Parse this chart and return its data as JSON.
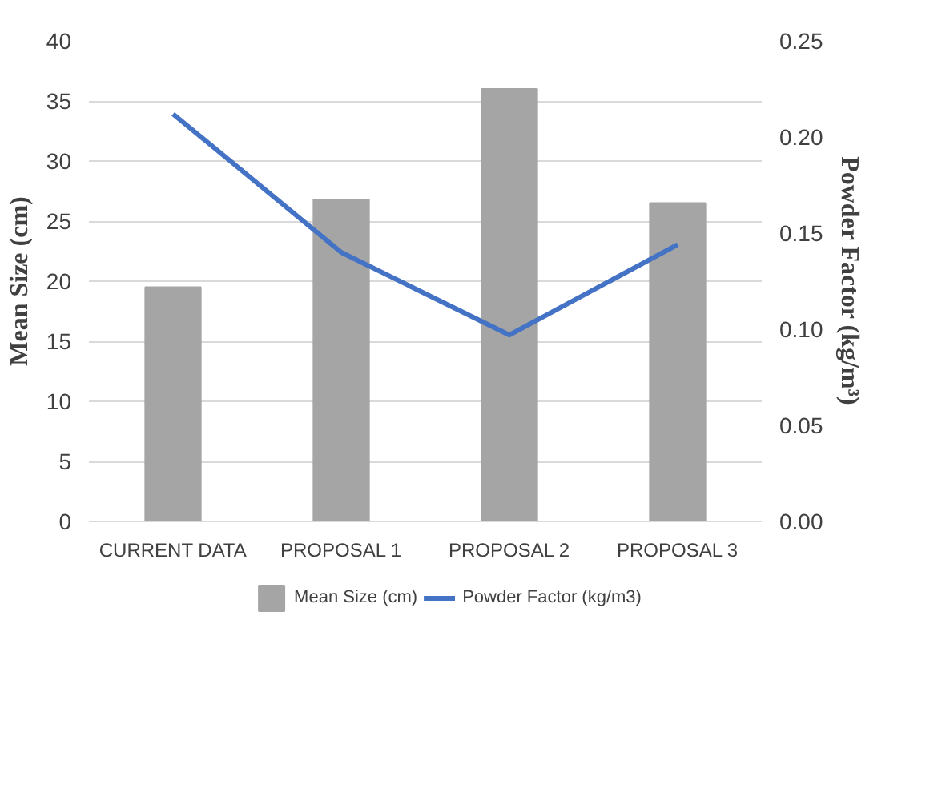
{
  "chart_data": {
    "type": "bar",
    "categories": [
      "CURRENT DATA",
      "PROPOSAL 1",
      "PROPOSAL 2",
      "PROPOSAL 3"
    ],
    "ylabel": "Mean Size (cm)",
    "y2label": "Powder Factor (kg/m³)",
    "series": [
      {
        "name": "Mean Size (cm)",
        "color": "#a5a5a5",
        "values": [
          19.5,
          26.8,
          36.0,
          26.5
        ]
      },
      {
        "name": "Powder Factor (kg/m3)",
        "color": "#4472c4",
        "type": "line",
        "axis": "y2",
        "values": [
          0.212,
          0.14,
          0.097,
          0.144
        ]
      }
    ],
    "ylim": [
      0,
      40
    ],
    "yticks": [
      0,
      5,
      10,
      15,
      20,
      25,
      30,
      35,
      40
    ],
    "y2lim": [
      0,
      0.25
    ],
    "y2ticks": [
      {
        "value": 0,
        "label": "0.00"
      },
      {
        "value": 0.05,
        "label": "0.05"
      },
      {
        "value": 0.1,
        "label": "0.10"
      },
      {
        "value": 0.15,
        "label": "0.15"
      },
      {
        "value": 0.2,
        "label": "0.20"
      },
      {
        "value": 0.25,
        "label": "0.25"
      }
    ],
    "grid": "y",
    "legend": "bottom"
  }
}
